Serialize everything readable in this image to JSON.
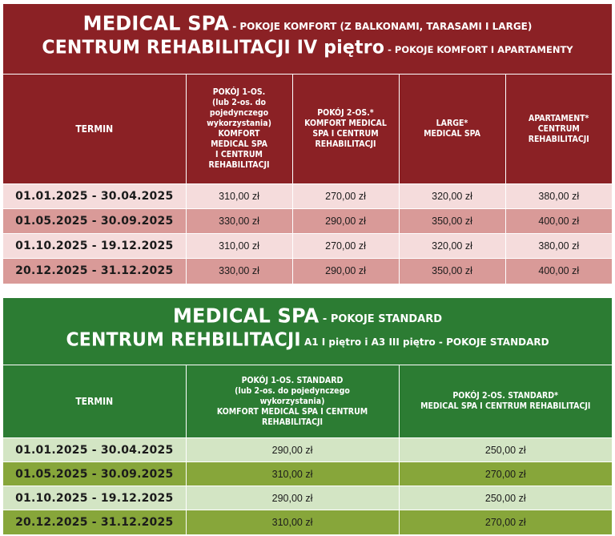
{
  "red_section": {
    "title_line1_big": "MEDICAL SPA",
    "title_line1_small": " - POKOJE KOMFORT (Z BALKONAMI, TARASAMI I LARGE)",
    "title_line2_big": "CENTRUM REHABILITACJI IV piętro",
    "title_line2_small": " - POKOJE KOMFORT I APARTAMENTY",
    "headers": [
      {
        "lines": [
          "TERMIN"
        ]
      },
      {
        "lines": [
          "POKÓJ 1-OS.",
          "(lub 2-os. do",
          "pojedynczego",
          "wykorzystania)",
          "KOMFORT",
          "MEDICAL SPA",
          "I CENTRUM",
          "REHABILITACJI"
        ]
      },
      {
        "lines": [
          "POKÓJ 2-OS.*",
          "KOMFORT MEDICAL",
          "SPA I CENTRUM",
          "REHABILITACJI"
        ]
      },
      {
        "lines": [
          "LARGE*",
          "MEDICAL SPA"
        ]
      },
      {
        "lines": [
          "APARTAMENT*",
          "CENTRUM",
          "REHABILITACJI"
        ]
      }
    ],
    "rows": [
      {
        "term": "01.01.2025 - 30.04.2025",
        "prices": [
          "310,00 zł",
          "270,00 zł",
          "320,00 zł",
          "380,00 zł"
        ]
      },
      {
        "term": "01.05.2025 - 30.09.2025",
        "prices": [
          "330,00 zł",
          "290,00 zł",
          "350,00 zł",
          "400,00 zł"
        ]
      },
      {
        "term": "01.10.2025 - 19.12.2025",
        "prices": [
          "310,00 zł",
          "270,00 zł",
          "320,00 zł",
          "380,00 zł"
        ]
      },
      {
        "term": "20.12.2025 - 31.12.2025",
        "prices": [
          "330,00 zł",
          "290,00 zł",
          "350,00 zł",
          "400,00 zł"
        ]
      }
    ],
    "colors": {
      "header": "#8b2125",
      "row_light": "#f5dcdc",
      "row_dark": "#d99a98"
    }
  },
  "green_section": {
    "title_line1_big": "MEDICAL SPA",
    "title_line1_small": " - POKOJE STANDARD",
    "title_line2_big": "CENTRUM REHBILITACJI",
    "title_line2_small": " A1 I piętro i A3 III piętro - POKOJE STANDARD",
    "headers": [
      {
        "lines": [
          "TERMIN"
        ]
      },
      {
        "lines": [
          "POKÓJ 1-OS. STANDARD",
          "(lub 2-os. do pojedynczego",
          "wykorzystania)",
          "KOMFORT MEDICAL SPA I CENTRUM",
          "REHABILITACJI"
        ]
      },
      {
        "lines": [
          "POKÓJ 2-OS. STANDARD*",
          "MEDICAL SPA I CENTRUM REHABILITACJI"
        ]
      }
    ],
    "rows": [
      {
        "term": "01.01.2025 - 30.04.2025",
        "prices": [
          "290,00 zł",
          "250,00 zł"
        ]
      },
      {
        "term": "01.05.2025 - 30.09.2025",
        "prices": [
          "310,00 zł",
          "270,00 zł"
        ]
      },
      {
        "term": "01.10.2025 - 19.12.2025",
        "prices": [
          "290,00 zł",
          "250,00 zł"
        ]
      },
      {
        "term": "20.12.2025 - 31.12.2025",
        "prices": [
          "310,00 zł",
          "270,00 zł"
        ]
      }
    ],
    "colors": {
      "header": "#2c7c33",
      "row_light": "#d3e5c4",
      "row_dark": "#87a63a"
    }
  }
}
